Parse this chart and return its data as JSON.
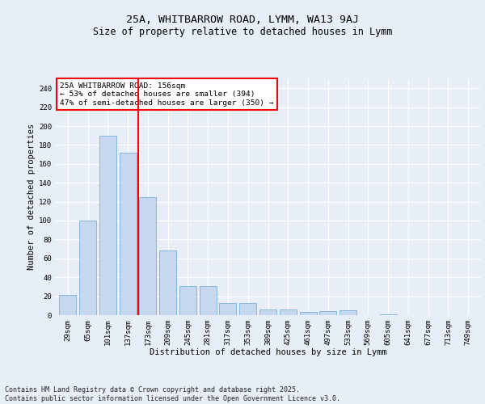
{
  "title_line1": "25A, WHITBARROW ROAD, LYMM, WA13 9AJ",
  "title_line2": "Size of property relative to detached houses in Lymm",
  "xlabel": "Distribution of detached houses by size in Lymm",
  "ylabel": "Number of detached properties",
  "categories": [
    "29sqm",
    "65sqm",
    "101sqm",
    "137sqm",
    "173sqm",
    "209sqm",
    "245sqm",
    "281sqm",
    "317sqm",
    "353sqm",
    "389sqm",
    "425sqm",
    "461sqm",
    "497sqm",
    "533sqm",
    "569sqm",
    "605sqm",
    "641sqm",
    "677sqm",
    "713sqm",
    "749sqm"
  ],
  "values": [
    21,
    100,
    190,
    172,
    125,
    68,
    31,
    31,
    13,
    13,
    6,
    6,
    3,
    4,
    5,
    0,
    1,
    0,
    0,
    0,
    0
  ],
  "bar_color": "#c5d8f0",
  "bar_edge_color": "#7aafd4",
  "vline_x": 3.5,
  "vline_color": "red",
  "annotation_text": "25A WHITBARROW ROAD: 156sqm\n← 53% of detached houses are smaller (394)\n47% of semi-detached houses are larger (350) →",
  "annotation_box_color": "white",
  "annotation_box_edge": "red",
  "ylim": [
    0,
    250
  ],
  "yticks": [
    0,
    20,
    40,
    60,
    80,
    100,
    120,
    140,
    160,
    180,
    200,
    220,
    240
  ],
  "footnote": "Contains HM Land Registry data © Crown copyright and database right 2025.\nContains public sector information licensed under the Open Government Licence v3.0.",
  "bg_color": "#e8eef8",
  "plot_bg_color": "#e8eef8",
  "grid_color": "white",
  "title_fontsize": 9.5,
  "subtitle_fontsize": 8.5,
  "axis_label_fontsize": 7.5,
  "tick_fontsize": 6.5,
  "footnote_fontsize": 6.0
}
